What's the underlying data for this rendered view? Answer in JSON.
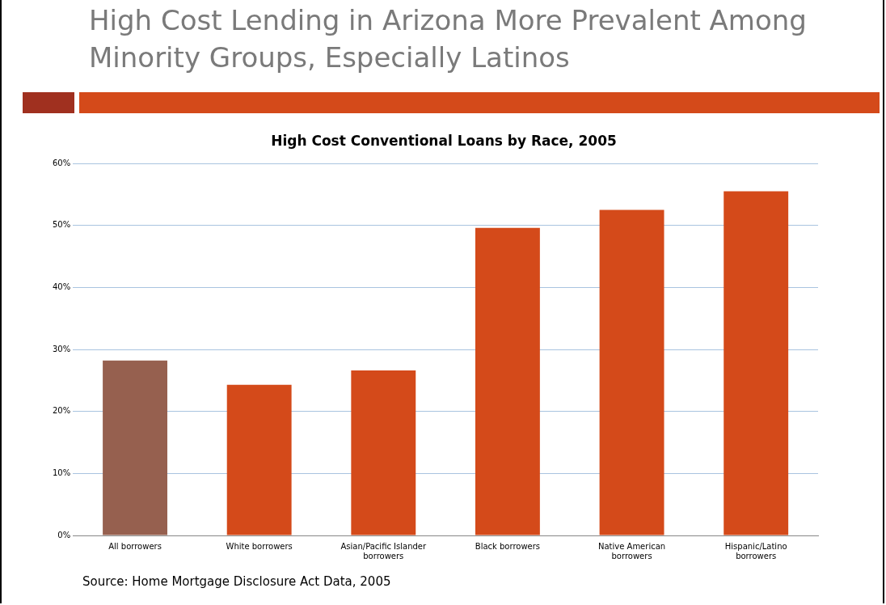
{
  "chart_data": {
    "type": "bar",
    "title": "High Cost Lending in Arizona More Prevalent Among Minority Groups, Especially Latinos",
    "subtitle": "High Cost Conventional Loans by Race, 2005",
    "categories": [
      "All borrowers",
      "White borrowers",
      "Asian/Pacific Islander borrowers",
      "Black borrowers",
      "Native American borrowers",
      "Hispanic/Latino borrowers"
    ],
    "values": [
      28.2,
      24.3,
      26.6,
      49.6,
      52.5,
      55.5
    ],
    "colors": [
      "#96604f",
      "#d44a1a",
      "#d44a1a",
      "#d44a1a",
      "#d44a1a",
      "#d44a1a"
    ],
    "ylim": [
      0,
      60
    ],
    "yticks": [
      {
        "value": 0,
        "label": "0%"
      },
      {
        "value": 10,
        "label": "10%"
      },
      {
        "value": 20,
        "label": "20%"
      },
      {
        "value": 30,
        "label": "30%"
      },
      {
        "value": 40,
        "label": "40%"
      },
      {
        "value": 50,
        "label": "50%"
      },
      {
        "value": 60,
        "label": "60%"
      }
    ],
    "grid": "y",
    "legend": false,
    "annotations": [
      "Source: Home Mortgage Disclosure Act Data, 2005"
    ]
  }
}
